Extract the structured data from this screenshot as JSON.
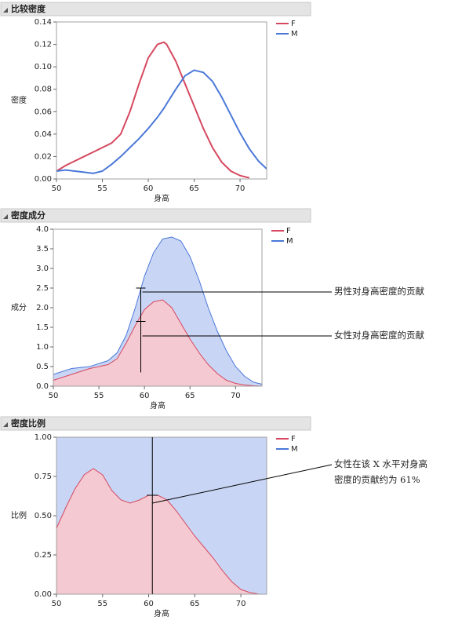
{
  "chart_data": [
    {
      "type": "line",
      "title": "比较密度",
      "x_label": "身高",
      "y_label": "密度",
      "x": [
        50,
        51,
        52,
        53,
        54,
        55,
        56,
        57,
        58,
        59,
        60,
        61,
        61.7,
        62,
        63,
        64,
        65,
        66,
        67,
        68,
        69,
        70,
        71,
        72,
        72.9
      ],
      "series": [
        {
          "name": "F",
          "color": "#d6485f",
          "values": [
            0.007,
            0.012,
            0.016,
            0.02,
            0.024,
            0.028,
            0.032,
            0.04,
            0.06,
            0.085,
            0.108,
            0.12,
            0.122,
            0.12,
            0.105,
            0.085,
            0.065,
            0.045,
            0.028,
            0.015,
            0.007,
            0.003,
            0.001,
            null,
            null
          ]
        },
        {
          "name": "M",
          "color": "#4a78d8",
          "values": [
            0.007,
            0.008,
            0.007,
            0.006,
            0.005,
            0.007,
            0.013,
            0.02,
            0.028,
            0.036,
            0.045,
            0.055,
            0.063,
            0.067,
            0.08,
            0.092,
            0.097,
            0.095,
            0.087,
            0.073,
            0.057,
            0.041,
            0.027,
            0.016,
            0.009
          ]
        }
      ],
      "xlim": [
        50,
        72.9
      ],
      "xticks": [
        50,
        55,
        60,
        65,
        70
      ],
      "ylim": [
        0,
        0.14
      ],
      "yticks": [
        {
          "value": 0,
          "label": "0.00"
        },
        0.02,
        0.04,
        0.06,
        0.08,
        {
          "value": 0.1,
          "label": "0.10"
        },
        0.12,
        0.14
      ]
    },
    {
      "type": "area",
      "stacked": true,
      "title": "密度成分",
      "x_label": "身高",
      "y_label": "成分",
      "x": [
        50,
        52,
        54,
        56,
        57,
        58,
        59,
        60,
        61,
        62,
        63,
        64,
        65,
        66,
        67,
        68,
        69,
        70,
        71,
        72,
        72.9
      ],
      "series": [
        {
          "name": "F",
          "color": "#d6485f",
          "fill": "#f4c9d1",
          "values": [
            0.15,
            0.3,
            0.45,
            0.55,
            0.7,
            1.1,
            1.55,
            1.95,
            2.15,
            2.2,
            2.0,
            1.6,
            1.2,
            0.85,
            0.55,
            0.32,
            0.15,
            0.07,
            0.03,
            0.01,
            0
          ]
        },
        {
          "name": "M",
          "color": "#4a78d8",
          "fill": "#c9d5f5",
          "values": [
            0.15,
            0.15,
            0.05,
            0.1,
            0.15,
            0.2,
            0.45,
            0.85,
            1.25,
            1.55,
            1.8,
            2.1,
            2.1,
            1.85,
            1.45,
            1.08,
            0.75,
            0.43,
            0.22,
            0.09,
            0.05
          ]
        }
      ],
      "xlim": [
        50,
        72.9
      ],
      "xticks": [
        50,
        55,
        60,
        65,
        70
      ],
      "ylim": [
        0,
        4
      ],
      "yticks": [
        {
          "value": 0,
          "label": "0.0"
        },
        0.5,
        {
          "value": 1,
          "label": "1.0"
        },
        1.5,
        {
          "value": 2,
          "label": "2.0"
        },
        2.5,
        {
          "value": 3,
          "label": "3.0"
        },
        3.5,
        {
          "value": 4,
          "label": "4.0"
        }
      ],
      "annotations": [
        "男性对身高密度的贡献",
        "女性对身高密度的贡献"
      ]
    },
    {
      "type": "area",
      "stacked": true,
      "title": "密度比例",
      "x_label": "身高",
      "y_label": "比例",
      "x": [
        50,
        51,
        52,
        53,
        54,
        55,
        56,
        57,
        58,
        59,
        60,
        61,
        62,
        63,
        64,
        65,
        66,
        67,
        68,
        69,
        70,
        71,
        72,
        72.8
      ],
      "series": [
        {
          "name": "F",
          "color": "#d6485f",
          "fill": "#f4c9d1",
          "values": [
            0.42,
            0.55,
            0.67,
            0.76,
            0.8,
            0.76,
            0.66,
            0.6,
            0.58,
            0.6,
            0.63,
            0.63,
            0.6,
            0.53,
            0.45,
            0.37,
            0.3,
            0.23,
            0.15,
            0.08,
            0.03,
            0.01,
            0,
            0
          ]
        },
        {
          "name": "M",
          "color": "#4a78d8",
          "fill": "#c9d5f5",
          "values": [
            0.58,
            0.45,
            0.33,
            0.24,
            0.2,
            0.24,
            0.34,
            0.4,
            0.42,
            0.4,
            0.37,
            0.37,
            0.4,
            0.47,
            0.55,
            0.63,
            0.7,
            0.77,
            0.85,
            0.92,
            0.97,
            0.99,
            1,
            1
          ]
        }
      ],
      "xlim": [
        50,
        72.8
      ],
      "xticks": [
        50,
        55,
        60,
        65,
        70
      ],
      "ylim": [
        0,
        1
      ],
      "yticks": [
        {
          "value": 0,
          "label": "0.00"
        },
        0.25,
        {
          "value": 0.5,
          "label": "0.50"
        },
        0.75,
        {
          "value": 1,
          "label": "1.00"
        }
      ],
      "annotations": [
        "女性在该 X 水平对身高",
        "密度的贡献约为 61%"
      ]
    }
  ]
}
